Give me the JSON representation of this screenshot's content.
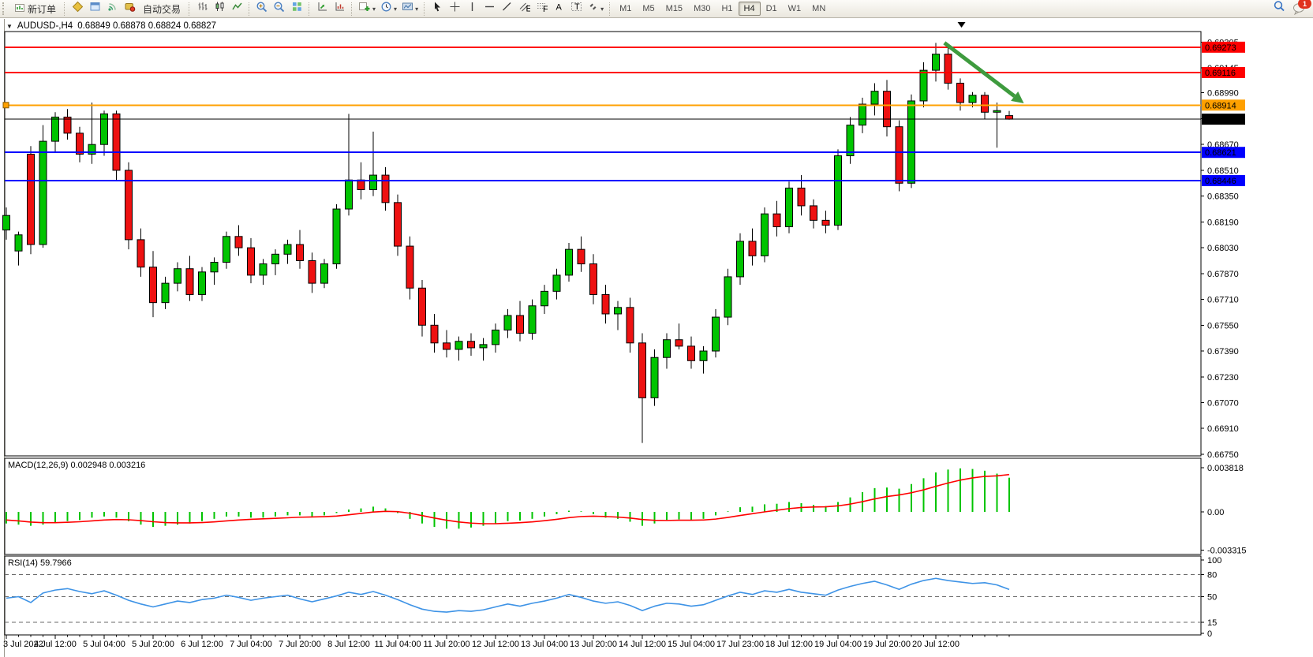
{
  "toolbar": {
    "new_order_label": "新订单",
    "auto_trading_label": "自动交易",
    "timeframes": [
      "M1",
      "M5",
      "M15",
      "M30",
      "H1",
      "H4",
      "D1",
      "W1",
      "MN"
    ],
    "active_timeframe": "H4",
    "notification_badge": "1",
    "icon_names": [
      "new-order-icon",
      "market-watch-icon",
      "data-window-icon",
      "signals-icon",
      "autotrade-icon",
      "bar-chart-icon",
      "candlestick-icon",
      "line-chart-icon",
      "zoom-in-icon",
      "zoom-out-icon",
      "tile-windows-icon",
      "auto-arrange-icon",
      "grid-arrange-icon",
      "new-chart-icon",
      "period-clock-icon",
      "template-icon",
      "cursor-icon",
      "crosshair-icon",
      "vertical-line-icon",
      "horizontal-line-icon",
      "trendline-icon",
      "equidistant-channel-icon",
      "fibonacci-icon",
      "text-icon",
      "text-label-icon",
      "arrows-icon",
      "search-icon",
      "chat-icon"
    ]
  },
  "chart": {
    "collapse_arrow": "▼",
    "title": "AUDUSD-,H4",
    "ohlc_text": "0.68849 0.68878 0.68824 0.68827"
  },
  "indicators": {
    "macd": {
      "label": "MACD(12,26,9)",
      "values_text": "0.002948 0.003216"
    },
    "rsi": {
      "label": "RSI(14)",
      "value_text": "59.7966"
    }
  },
  "price_axis": {
    "ticks": [
      "0.69305",
      "0.69145",
      "0.68990",
      "0.68830",
      "0.68670",
      "0.68510",
      "0.68350",
      "0.68190",
      "0.68030",
      "0.67870",
      "0.67710",
      "0.67550",
      "0.67390",
      "0.67230",
      "0.67070",
      "0.66910",
      "0.66750"
    ]
  },
  "macd_axis": {
    "ticks": [
      {
        "label": "0.003818",
        "value": 0.003818
      },
      {
        "label": "0.00",
        "value": 0
      },
      {
        "label": "-0.003315",
        "value": -0.003315
      }
    ]
  },
  "rsi_axis": {
    "ticks": [
      {
        "label": "100",
        "value": 100
      },
      {
        "label": "80",
        "value": 80
      },
      {
        "label": "50",
        "value": 50
      },
      {
        "label": "15",
        "value": 15
      },
      {
        "label": "0",
        "value": 0
      }
    ]
  },
  "time_axis": {
    "labels": [
      "3 Jul 2022",
      "4 Jul 12:00",
      "5 Jul 04:00",
      "5 Jul 20:00",
      "6 Jul 12:00",
      "7 Jul 04:00",
      "7 Jul 20:00",
      "8 Jul 12:00",
      "11 Jul 04:00",
      "11 Jul 20:00",
      "12 Jul 12:00",
      "13 Jul 04:00",
      "13 Jul 20:00",
      "14 Jul 12:00",
      "15 Jul 04:00",
      "17 Jul 23:00",
      "18 Jul 12:00",
      "19 Jul 04:00",
      "19 Jul 20:00",
      "20 Jul 12:00"
    ]
  },
  "chart_data": [
    {
      "type": "candlestick",
      "symbol": "AUDUSD",
      "timeframe": "H4",
      "ylim": [
        0.6674,
        0.6937
      ],
      "colors": {
        "up": "#00C400",
        "down": "#EE1111",
        "outline": "#000000"
      },
      "ohlc": [
        [
          0.6814,
          0.6828,
          0.6808,
          0.6823
        ],
        [
          0.6801,
          0.6813,
          0.6792,
          0.6811
        ],
        [
          0.6861,
          0.6866,
          0.6799,
          0.6805
        ],
        [
          0.6805,
          0.6879,
          0.6803,
          0.6869
        ],
        [
          0.6869,
          0.6887,
          0.6862,
          0.6884
        ],
        [
          0.6884,
          0.6889,
          0.687,
          0.6874
        ],
        [
          0.6874,
          0.6878,
          0.6856,
          0.6861
        ],
        [
          0.6861,
          0.6893,
          0.6855,
          0.6867
        ],
        [
          0.6867,
          0.6888,
          0.686,
          0.6886
        ],
        [
          0.6886,
          0.6888,
          0.6845,
          0.6851
        ],
        [
          0.6851,
          0.6856,
          0.6802,
          0.6808
        ],
        [
          0.6808,
          0.6815,
          0.6785,
          0.6791
        ],
        [
          0.6791,
          0.6801,
          0.676,
          0.6769
        ],
        [
          0.6769,
          0.6785,
          0.6765,
          0.6781
        ],
        [
          0.6781,
          0.6794,
          0.6776,
          0.679
        ],
        [
          0.679,
          0.6798,
          0.677,
          0.6774
        ],
        [
          0.6774,
          0.6791,
          0.677,
          0.6788
        ],
        [
          0.6788,
          0.6797,
          0.678,
          0.6794
        ],
        [
          0.6794,
          0.6813,
          0.679,
          0.681
        ],
        [
          0.681,
          0.6817,
          0.6798,
          0.6803
        ],
        [
          0.6803,
          0.6809,
          0.6781,
          0.6786
        ],
        [
          0.6786,
          0.6796,
          0.678,
          0.6793
        ],
        [
          0.6793,
          0.6802,
          0.6786,
          0.6799
        ],
        [
          0.6799,
          0.6808,
          0.6793,
          0.6805
        ],
        [
          0.6805,
          0.6814,
          0.679,
          0.6795
        ],
        [
          0.6795,
          0.68,
          0.6775,
          0.6781
        ],
        [
          0.6781,
          0.6796,
          0.6778,
          0.6793
        ],
        [
          0.6793,
          0.683,
          0.679,
          0.6827
        ],
        [
          0.6827,
          0.6886,
          0.6823,
          0.6845
        ],
        [
          0.6845,
          0.6856,
          0.6833,
          0.6839
        ],
        [
          0.6839,
          0.6875,
          0.6835,
          0.6848
        ],
        [
          0.6848,
          0.6853,
          0.6826,
          0.6831
        ],
        [
          0.6831,
          0.6836,
          0.6798,
          0.6804
        ],
        [
          0.6804,
          0.681,
          0.6771,
          0.6778
        ],
        [
          0.6778,
          0.6783,
          0.6748,
          0.6755
        ],
        [
          0.6755,
          0.6762,
          0.6738,
          0.6744
        ],
        [
          0.6744,
          0.6752,
          0.6735,
          0.674
        ],
        [
          0.674,
          0.6748,
          0.6733,
          0.6745
        ],
        [
          0.6745,
          0.675,
          0.6736,
          0.6741
        ],
        [
          0.6741,
          0.6747,
          0.6733,
          0.6743
        ],
        [
          0.6743,
          0.6756,
          0.6738,
          0.6752
        ],
        [
          0.6752,
          0.6765,
          0.6747,
          0.6761
        ],
        [
          0.6761,
          0.677,
          0.6745,
          0.675
        ],
        [
          0.675,
          0.6771,
          0.6746,
          0.6767
        ],
        [
          0.6767,
          0.678,
          0.6762,
          0.6776
        ],
        [
          0.6776,
          0.679,
          0.6771,
          0.6786
        ],
        [
          0.6786,
          0.6806,
          0.6782,
          0.6802
        ],
        [
          0.6802,
          0.681,
          0.6788,
          0.6793
        ],
        [
          0.6793,
          0.6799,
          0.6768,
          0.6774
        ],
        [
          0.6774,
          0.678,
          0.6756,
          0.6762
        ],
        [
          0.6762,
          0.677,
          0.6752,
          0.6766
        ],
        [
          0.6766,
          0.6772,
          0.6738,
          0.6744
        ],
        [
          0.6744,
          0.675,
          0.6682,
          0.671
        ],
        [
          0.671,
          0.674,
          0.6705,
          0.6735
        ],
        [
          0.6735,
          0.675,
          0.6728,
          0.6746
        ],
        [
          0.6746,
          0.6756,
          0.674,
          0.6742
        ],
        [
          0.6742,
          0.6748,
          0.6728,
          0.6733
        ],
        [
          0.6733,
          0.6742,
          0.6725,
          0.6739
        ],
        [
          0.6739,
          0.6765,
          0.6735,
          0.676
        ],
        [
          0.676,
          0.679,
          0.6755,
          0.6785
        ],
        [
          0.6785,
          0.6812,
          0.678,
          0.6807
        ],
        [
          0.6807,
          0.6815,
          0.6792,
          0.6798
        ],
        [
          0.6798,
          0.6828,
          0.6794,
          0.6824
        ],
        [
          0.6824,
          0.6832,
          0.681,
          0.6816
        ],
        [
          0.6816,
          0.6844,
          0.6812,
          0.684
        ],
        [
          0.684,
          0.6848,
          0.6823,
          0.6829
        ],
        [
          0.6829,
          0.6833,
          0.6815,
          0.682
        ],
        [
          0.682,
          0.6826,
          0.6812,
          0.6817
        ],
        [
          0.6817,
          0.6864,
          0.6814,
          0.686
        ],
        [
          0.686,
          0.6884,
          0.6855,
          0.6879
        ],
        [
          0.6879,
          0.6896,
          0.6874,
          0.6892
        ],
        [
          0.6892,
          0.6905,
          0.6885,
          0.69
        ],
        [
          0.69,
          0.6907,
          0.6872,
          0.6878
        ],
        [
          0.6878,
          0.6882,
          0.6838,
          0.6843
        ],
        [
          0.6843,
          0.6898,
          0.684,
          0.6894
        ],
        [
          0.6894,
          0.6918,
          0.689,
          0.6913
        ],
        [
          0.6913,
          0.693,
          0.6906,
          0.6923
        ],
        [
          0.6923,
          0.6928,
          0.6901,
          0.6905
        ],
        [
          0.6905,
          0.6908,
          0.6888,
          0.6893
        ],
        [
          0.6893,
          0.68995,
          0.689,
          0.68975
        ],
        [
          0.68975,
          0.68995,
          0.6883,
          0.6887
        ],
        [
          0.6887,
          0.6893,
          0.6865,
          0.6888
        ],
        [
          0.68849,
          0.68878,
          0.68824,
          0.68827
        ]
      ],
      "hlines": [
        {
          "price": 0.69273,
          "label": "0.69273",
          "color": "#FF0000",
          "width": 2
        },
        {
          "price": 0.69116,
          "label": "0.69116",
          "color": "#FF0000",
          "width": 2
        },
        {
          "price": 0.68914,
          "label": "0.68914",
          "color": "#FFA000",
          "width": 2,
          "handle": true
        },
        {
          "price": 0.68827,
          "label": "0.68827",
          "color": "#000000",
          "width": 1
        },
        {
          "price": 0.68621,
          "label": "0.68621",
          "color": "#0000FF",
          "width": 2
        },
        {
          "price": 0.68446,
          "label": "0.68446",
          "color": "#0000FF",
          "width": 2
        }
      ],
      "annotations": [
        {
          "type": "arrow",
          "color": "#3E9B3E",
          "x1_bar": 76.7,
          "price1": 0.693,
          "x2_bar": 83.2,
          "price2": 0.68925
        },
        {
          "type": "shift-marker",
          "x_bar": 78.1
        }
      ]
    },
    {
      "type": "bar",
      "name": "MACD",
      "params": "12,26,9",
      "ylim": [
        -0.0036,
        0.00456
      ],
      "colors": {
        "histogram": "#00C400",
        "signal": "#FF0000"
      },
      "histogram": [
        -0.001,
        -0.0011,
        -0.0012,
        -0.0011,
        -0.0009,
        -0.0008,
        -0.0007,
        -0.0005,
        -0.0004,
        -0.0005,
        -0.0008,
        -0.0011,
        -0.0013,
        -0.0012,
        -0.0011,
        -0.001,
        -0.0008,
        -0.0006,
        -0.0004,
        -0.0004,
        -0.0005,
        -0.0005,
        -0.0004,
        -0.0003,
        -0.0003,
        -0.0004,
        -0.0003,
        -0.0001,
        0.0002,
        0.0003,
        0.00045,
        0.0003,
        -0.0001,
        -0.0006,
        -0.001,
        -0.0013,
        -0.00145,
        -0.00145,
        -0.00135,
        -0.0012,
        -0.001,
        -0.0008,
        -0.00075,
        -0.0006,
        -0.0004,
        -0.0002,
        0.0001,
        5e-05,
        -0.0002,
        -0.0005,
        -0.0006,
        -0.00085,
        -0.0012,
        -0.001,
        -0.00075,
        -0.00065,
        -0.0007,
        -0.0006,
        -0.0003,
        5e-05,
        0.0004,
        0.00045,
        0.00065,
        0.0007,
        0.00085,
        0.00075,
        0.0006,
        0.0005,
        0.00085,
        0.00125,
        0.0017,
        0.00205,
        0.0021,
        0.002,
        0.0024,
        0.0029,
        0.0034,
        0.00365,
        0.00375,
        0.0037,
        0.00355,
        0.0033,
        0.002948
      ],
      "signal": [
        -0.0007,
        -0.00078,
        -0.00088,
        -0.00093,
        -0.00093,
        -0.0009,
        -0.00085,
        -0.00078,
        -0.0007,
        -0.00066,
        -0.00068,
        -0.00075,
        -0.00085,
        -0.00092,
        -0.00095,
        -0.00095,
        -0.00092,
        -0.00086,
        -0.00078,
        -0.0007,
        -0.00064,
        -0.0006,
        -0.00056,
        -0.00051,
        -0.00046,
        -0.00044,
        -0.00041,
        -0.00036,
        -0.00025,
        -0.00013,
        -1e-05,
        5e-05,
        2e-05,
        -0.00012,
        -0.00032,
        -0.00053,
        -0.00072,
        -0.00087,
        -0.00097,
        -0.00102,
        -0.00102,
        -0.00098,
        -0.00093,
        -0.00086,
        -0.00076,
        -0.00064,
        -0.0005,
        -0.0004,
        -0.00037,
        -0.0004,
        -0.00045,
        -0.00053,
        -0.00066,
        -0.00073,
        -0.00074,
        -0.00072,
        -0.00072,
        -0.0007,
        -0.00062,
        -0.00048,
        -0.00031,
        -0.00016,
        0.0,
        0.00014,
        0.00028,
        0.00038,
        0.00042,
        0.00044,
        0.00052,
        0.00067,
        0.00088,
        0.00112,
        0.00132,
        0.00146,
        0.00165,
        0.0019,
        0.0022,
        0.00249,
        0.00274,
        0.00293,
        0.00306,
        0.00311,
        0.003216
      ]
    },
    {
      "type": "line",
      "name": "RSI",
      "period": 14,
      "ylim": [
        0,
        100
      ],
      "color": "#3E93E6",
      "levels": [
        80,
        50,
        15
      ],
      "values": [
        48,
        50,
        42,
        55,
        59,
        61,
        57,
        54,
        58,
        52,
        45,
        40,
        36,
        40,
        44,
        42,
        46,
        48,
        52,
        49,
        45,
        48,
        50,
        52,
        47,
        43,
        47,
        51,
        56,
        53,
        57,
        52,
        46,
        39,
        33,
        30,
        29,
        31,
        30,
        32,
        36,
        40,
        37,
        41,
        44,
        48,
        53,
        49,
        44,
        41,
        43,
        38,
        31,
        37,
        41,
        40,
        37,
        39,
        45,
        51,
        56,
        53,
        58,
        56,
        60,
        56,
        54,
        52,
        59,
        64,
        68,
        71,
        66,
        60,
        67,
        72,
        75,
        72,
        70,
        68,
        69,
        66,
        59.8
      ]
    }
  ]
}
